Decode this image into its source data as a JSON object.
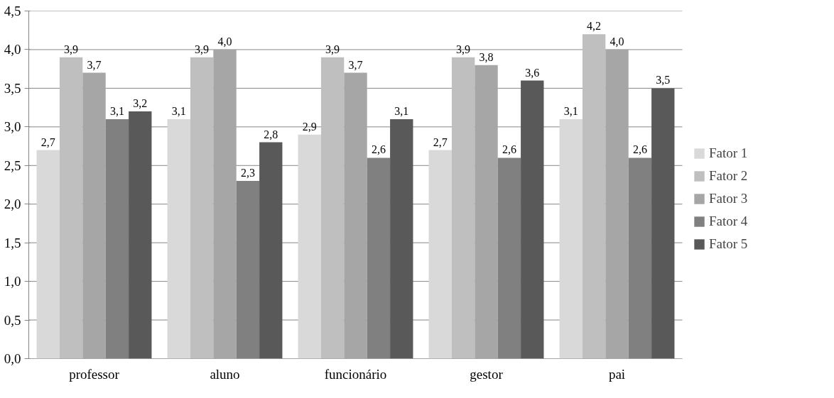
{
  "chart_data": {
    "type": "bar",
    "categories": [
      "professor",
      "aluno",
      "funcionário",
      "gestor",
      "pai"
    ],
    "series": [
      {
        "name": "Fator 1",
        "color": "#d9d9d9",
        "values": [
          2.7,
          3.1,
          2.9,
          2.7,
          3.1
        ],
        "value_labels": [
          "2,7",
          "3,1",
          "2,9",
          "2,7",
          "3,1"
        ]
      },
      {
        "name": "Fator 2",
        "color": "#bfbfbf",
        "values": [
          3.9,
          3.9,
          3.9,
          3.9,
          4.2
        ],
        "value_labels": [
          "3,9",
          "3,9",
          "3,9",
          "3,9",
          "4,2"
        ]
      },
      {
        "name": "Fator 3",
        "color": "#a6a6a6",
        "values": [
          3.7,
          4.0,
          3.7,
          3.8,
          4.0
        ],
        "value_labels": [
          "3,7",
          "4,0",
          "3,7",
          "3,8",
          "4,0"
        ]
      },
      {
        "name": "Fator 4",
        "color": "#808080",
        "values": [
          3.1,
          2.3,
          2.6,
          2.6,
          2.6
        ],
        "value_labels": [
          "3,1",
          "2,3",
          "2,6",
          "2,6",
          "2,6"
        ]
      },
      {
        "name": "Fator 5",
        "color": "#595959",
        "values": [
          3.2,
          2.8,
          3.1,
          3.6,
          3.5
        ],
        "value_labels": [
          "3,2",
          "2,8",
          "3,1",
          "3,6",
          "3,5"
        ]
      }
    ],
    "ylim": [
      0,
      4.5
    ],
    "yticks": [
      {
        "value": 0,
        "label": "0,0"
      },
      {
        "value": 0.5,
        "label": "0,5"
      },
      {
        "value": 1,
        "label": "1,0"
      },
      {
        "value": 1.5,
        "label": "1,5"
      },
      {
        "value": 2,
        "label": "2,0"
      },
      {
        "value": 2.5,
        "label": "2,5"
      },
      {
        "value": 3,
        "label": "3,0"
      },
      {
        "value": 3.5,
        "label": "3,5"
      },
      {
        "value": 4,
        "label": "4,0"
      },
      {
        "value": 4.5,
        "label": "4,5"
      }
    ],
    "grid": "y",
    "legend": "right"
  }
}
